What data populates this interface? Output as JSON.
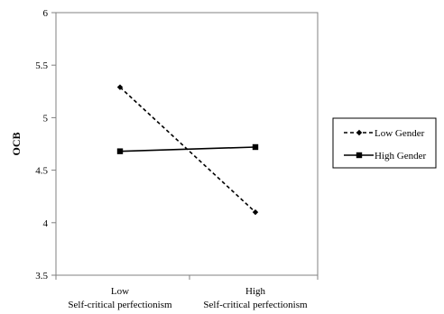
{
  "chart_data": {
    "type": "line",
    "categories": [
      {
        "top": "Low",
        "bottom": "Self-critical perfectionism"
      },
      {
        "top": "High",
        "bottom": "Self-critical perfectionism"
      }
    ],
    "series": [
      {
        "name": "Low Gender",
        "values": [
          5.29,
          4.1
        ],
        "style": "dashed",
        "marker": "diamond",
        "color": "#000000"
      },
      {
        "name": "High Gender",
        "values": [
          4.68,
          4.72
        ],
        "style": "solid",
        "marker": "square",
        "color": "#000000"
      }
    ],
    "title": "",
    "xlabel": "",
    "ylabel": "OCB",
    "ylim": [
      3.5,
      6
    ],
    "yticks": [
      "6",
      "5.5",
      "5",
      "4.5",
      "4",
      "3.5"
    ],
    "ytick_values": [
      6,
      5.5,
      5,
      4.5,
      4,
      3.5
    ],
    "grid": false,
    "legend_position": "right"
  }
}
